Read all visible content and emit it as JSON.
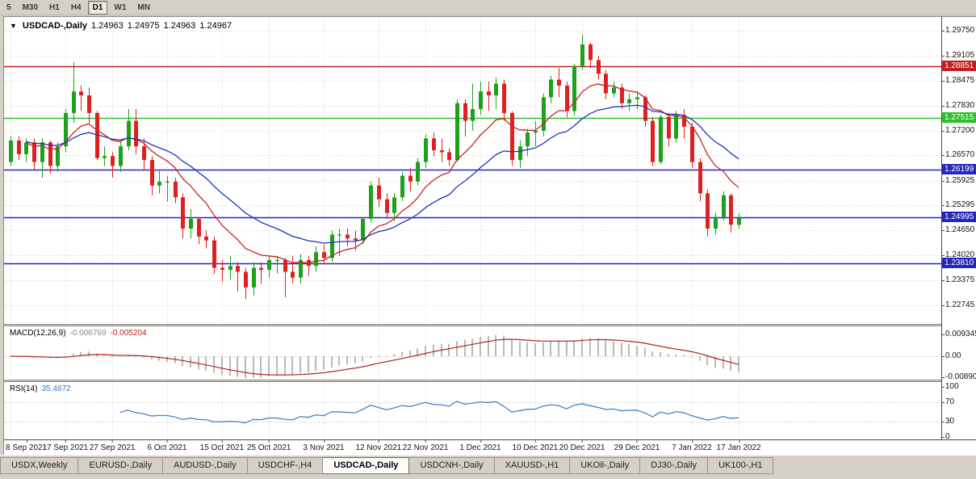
{
  "toolbar": {
    "timeframes": [
      {
        "label": "5",
        "active": false
      },
      {
        "label": "M30",
        "active": false
      },
      {
        "label": "H1",
        "active": false
      },
      {
        "label": "H4",
        "active": false
      },
      {
        "label": "D1",
        "active": true
      },
      {
        "label": "W1",
        "active": false
      },
      {
        "label": "MN",
        "active": false
      }
    ]
  },
  "chart": {
    "title": {
      "collapse_icon": "▼",
      "symbol": "USDCAD-,Daily",
      "open": "1.24963",
      "high": "1.24975",
      "low": "1.24963",
      "close": "1.24967"
    },
    "price_axis_labels": [
      "1.29750",
      "1.29105",
      "1.28475",
      "1.27830",
      "1.27200",
      "1.26570",
      "1.25925",
      "1.25295",
      "1.24650",
      "1.24020",
      "1.23375",
      "1.22745"
    ],
    "levels": [
      {
        "price": 1.28851,
        "label": "1.28851",
        "color": "#c22020"
      },
      {
        "price": 1.27515,
        "label": "1.27515",
        "color": "#2fbf2f"
      },
      {
        "price": 1.26199,
        "label": "1.26199",
        "color": "#2626bb"
      },
      {
        "price": 1.24995,
        "label": "1.24995",
        "color": "#2626bb"
      },
      {
        "price": 1.2381,
        "label": "1.23810",
        "color": "#2626bb"
      }
    ],
    "date_ticks": [
      {
        "label": "8 Sep 2021",
        "index": 0
      },
      {
        "label": "17 Sep 2021",
        "index": 7
      },
      {
        "label": "27 Sep 2021",
        "index": 13
      },
      {
        "label": "6 Oct 2021",
        "index": 20
      },
      {
        "label": "15 Oct 2021",
        "index": 27
      },
      {
        "label": "25 Oct 2021",
        "index": 33
      },
      {
        "label": "3 Nov 2021",
        "index": 40
      },
      {
        "label": "12 Nov 2021",
        "index": 47
      },
      {
        "label": "22 Nov 2021",
        "index": 53
      },
      {
        "label": "1 Dec 2021",
        "index": 60
      },
      {
        "label": "10 Dec 2021",
        "index": 67
      },
      {
        "label": "20 Dec 2021",
        "index": 73
      },
      {
        "label": "29 Dec 2021",
        "index": 80
      },
      {
        "label": "7 Jan 2022",
        "index": 87
      },
      {
        "label": "17 Jan 2022",
        "index": 93
      }
    ]
  },
  "macd_panel": {
    "name": "MACD(12,26,9)",
    "value_main": "-0.006769",
    "value_signal": "-0.005204",
    "axis_labels": [
      {
        "text": "0.009345",
        "value": 0.009345
      },
      {
        "text": "0.00",
        "value": 0
      },
      {
        "text": "-0.008902",
        "value": -0.008902
      }
    ],
    "colors": {
      "histogram": "#b9b9b9",
      "signal": "#b22222"
    }
  },
  "rsi_panel": {
    "name": "RSI(14)",
    "value": "35.4872",
    "axis_labels": [
      {
        "text": "100",
        "value": 100
      },
      {
        "text": "70",
        "value": 70
      },
      {
        "text": "30",
        "value": 30
      },
      {
        "text": "0",
        "value": 0
      }
    ],
    "levels": [
      70,
      30
    ],
    "color": "#3a7abf"
  },
  "tabs": [
    {
      "label": "USDX,Weekly",
      "active": false
    },
    {
      "label": "EURUSD-,Daily",
      "active": false
    },
    {
      "label": "AUDUSD-,Daily",
      "active": false
    },
    {
      "label": "USDCHF-,H4",
      "active": false
    },
    {
      "label": "USDCAD-,Daily",
      "active": true
    },
    {
      "label": "USDCNH-,Daily",
      "active": false
    },
    {
      "label": "XAUUSD-,H1",
      "active": false
    },
    {
      "label": "UKOil-,Daily",
      "active": false
    },
    {
      "label": "DJ30-,Daily",
      "active": false
    },
    {
      "label": "UK100-,H1",
      "active": false
    }
  ],
  "chart_data": {
    "type": "candlestick",
    "symbol": "USDCAD-",
    "timeframe": "Daily",
    "title": "USDCAD-,Daily",
    "ohlc_display": [
      1.24963,
      1.24975,
      1.24963,
      1.24967
    ],
    "visible_range": [
      1.2227,
      1.301
    ],
    "up_color": "#1ba11b",
    "down_color": "#e02020",
    "columns": [
      "date",
      "open",
      "high",
      "low",
      "close"
    ],
    "candles": [
      [
        "8 Sep",
        1.264,
        1.2705,
        1.263,
        1.2695
      ],
      [
        "9 Sep",
        1.2695,
        1.2705,
        1.2645,
        1.266
      ],
      [
        "10 Sep",
        1.266,
        1.27,
        1.264,
        1.269
      ],
      [
        "13 Sep",
        1.269,
        1.27,
        1.262,
        1.264
      ],
      [
        "14 Sep",
        1.264,
        1.27,
        1.26,
        1.269
      ],
      [
        "15 Sep",
        1.269,
        1.2695,
        1.261,
        1.263
      ],
      [
        "16 Sep",
        1.263,
        1.269,
        1.2615,
        1.268
      ],
      [
        "17 Sep",
        1.268,
        1.2775,
        1.2665,
        1.2765
      ],
      [
        "20 Sep",
        1.2765,
        1.2895,
        1.274,
        1.282
      ],
      [
        "21 Sep",
        1.282,
        1.2835,
        1.277,
        1.281
      ],
      [
        "22 Sep",
        1.281,
        1.283,
        1.274,
        1.2765
      ],
      [
        "23 Sep",
        1.2765,
        1.277,
        1.2645,
        1.265
      ],
      [
        "24 Sep",
        1.265,
        1.268,
        1.263,
        1.2655
      ],
      [
        "27 Sep",
        1.2655,
        1.2665,
        1.26,
        1.263
      ],
      [
        "28 Sep",
        1.263,
        1.2695,
        1.2615,
        1.268
      ],
      [
        "29 Sep",
        1.268,
        1.2775,
        1.267,
        1.2745
      ],
      [
        "30 Sep",
        1.2745,
        1.2775,
        1.266,
        1.268
      ],
      [
        "1 Oct",
        1.268,
        1.27,
        1.262,
        1.2645
      ],
      [
        "4 Oct",
        1.2645,
        1.2655,
        1.2555,
        1.258
      ],
      [
        "5 Oct",
        1.258,
        1.262,
        1.256,
        1.259
      ],
      [
        "6 Oct",
        1.259,
        1.2605,
        1.254,
        1.259
      ],
      [
        "7 Oct",
        1.259,
        1.26,
        1.2535,
        1.255
      ],
      [
        "8 Oct",
        1.255,
        1.256,
        1.2445,
        1.247
      ],
      [
        "11 Oct",
        1.247,
        1.252,
        1.2445,
        1.2495
      ],
      [
        "12 Oct",
        1.2495,
        1.25,
        1.243,
        1.245
      ],
      [
        "13 Oct",
        1.245,
        1.2465,
        1.242,
        1.244
      ],
      [
        "14 Oct",
        1.244,
        1.245,
        1.2355,
        1.237
      ],
      [
        "15 Oct",
        1.237,
        1.239,
        1.2335,
        1.2365
      ],
      [
        "18 Oct",
        1.2365,
        1.24,
        1.234,
        1.2375
      ],
      [
        "19 Oct",
        1.2375,
        1.2385,
        1.231,
        1.236
      ],
      [
        "20 Oct",
        1.236,
        1.237,
        1.229,
        1.232
      ],
      [
        "21 Oct",
        1.232,
        1.2385,
        1.23,
        1.237
      ],
      [
        "22 Oct",
        1.237,
        1.2385,
        1.233,
        1.2365
      ],
      [
        "25 Oct",
        1.2365,
        1.24,
        1.2345,
        1.239
      ],
      [
        "26 Oct",
        1.239,
        1.24,
        1.2355,
        1.239
      ],
      [
        "27 Oct",
        1.239,
        1.2395,
        1.2295,
        1.236
      ],
      [
        "28 Oct",
        1.236,
        1.24,
        1.233,
        1.2345
      ],
      [
        "29 Oct",
        1.2345,
        1.2405,
        1.233,
        1.239
      ],
      [
        "1 Nov",
        1.239,
        1.24,
        1.235,
        1.2375
      ],
      [
        "2 Nov",
        1.2375,
        1.2425,
        1.236,
        1.241
      ],
      [
        "3 Nov",
        1.241,
        1.243,
        1.238,
        1.2395
      ],
      [
        "4 Nov",
        1.2395,
        1.2465,
        1.2385,
        1.2455
      ],
      [
        "5 Nov",
        1.2455,
        1.247,
        1.24,
        1.2455
      ],
      [
        "8 Nov",
        1.2455,
        1.247,
        1.2425,
        1.2445
      ],
      [
        "9 Nov",
        1.2445,
        1.2465,
        1.2415,
        1.244
      ],
      [
        "10 Nov",
        1.244,
        1.25,
        1.243,
        1.2495
      ],
      [
        "11 Nov",
        1.2495,
        1.259,
        1.2485,
        1.258
      ],
      [
        "12 Nov",
        1.258,
        1.26,
        1.2525,
        1.2545
      ],
      [
        "15 Nov",
        1.2545,
        1.256,
        1.2495,
        1.251
      ],
      [
        "16 Nov",
        1.251,
        1.256,
        1.249,
        1.255
      ],
      [
        "17 Nov",
        1.255,
        1.2615,
        1.254,
        1.2605
      ],
      [
        "18 Nov",
        1.2605,
        1.2625,
        1.2565,
        1.259
      ],
      [
        "19 Nov",
        1.259,
        1.265,
        1.258,
        1.264
      ],
      [
        "22 Nov",
        1.264,
        1.271,
        1.2625,
        1.27
      ],
      [
        "23 Nov",
        1.27,
        1.2715,
        1.2655,
        1.267
      ],
      [
        "24 Nov",
        1.267,
        1.27,
        1.264,
        1.2665
      ],
      [
        "25 Nov",
        1.2665,
        1.2675,
        1.263,
        1.2645
      ],
      [
        "26 Nov",
        1.2645,
        1.28,
        1.264,
        1.279
      ],
      [
        "29 Nov",
        1.279,
        1.28,
        1.2705,
        1.2745
      ],
      [
        "30 Nov",
        1.2745,
        1.284,
        1.272,
        1.2775
      ],
      [
        "1 Dec",
        1.2775,
        1.2845,
        1.276,
        1.282
      ],
      [
        "2 Dec",
        1.282,
        1.2845,
        1.277,
        1.281
      ],
      [
        "3 Dec",
        1.281,
        1.2855,
        1.2775,
        1.284
      ],
      [
        "6 Dec",
        1.284,
        1.285,
        1.2745,
        1.2765
      ],
      [
        "7 Dec",
        1.2765,
        1.277,
        1.263,
        1.2645
      ],
      [
        "8 Dec",
        1.2645,
        1.2695,
        1.2625,
        1.268
      ],
      [
        "9 Dec",
        1.268,
        1.2725,
        1.2655,
        1.2715
      ],
      [
        "10 Dec",
        1.2715,
        1.2745,
        1.268,
        1.272
      ],
      [
        "13 Dec",
        1.272,
        1.2815,
        1.2705,
        1.2805
      ],
      [
        "14 Dec",
        1.2805,
        1.286,
        1.279,
        1.285
      ],
      [
        "15 Dec",
        1.285,
        1.288,
        1.2805,
        1.2835
      ],
      [
        "16 Dec",
        1.2835,
        1.2845,
        1.2755,
        1.277
      ],
      [
        "17 Dec",
        1.277,
        1.289,
        1.276,
        1.2885
      ],
      [
        "20 Dec",
        1.2885,
        1.2965,
        1.2875,
        1.294
      ],
      [
        "21 Dec",
        1.294,
        1.2945,
        1.288,
        1.29
      ],
      [
        "22 Dec",
        1.29,
        1.291,
        1.285,
        1.2865
      ],
      [
        "23 Dec",
        1.2865,
        1.2875,
        1.28,
        1.2815
      ],
      [
        "24 Dec",
        1.2815,
        1.2845,
        1.2805,
        1.283
      ],
      [
        "27 Dec",
        1.283,
        1.284,
        1.2775,
        1.279
      ],
      [
        "28 Dec",
        1.279,
        1.2815,
        1.277,
        1.28
      ],
      [
        "29 Dec",
        1.28,
        1.282,
        1.2775,
        1.2805
      ],
      [
        "30 Dec",
        1.2805,
        1.281,
        1.273,
        1.2745
      ],
      [
        "31 Dec",
        1.2745,
        1.2755,
        1.263,
        1.264
      ],
      [
        "3 Jan",
        1.264,
        1.276,
        1.2635,
        1.2755
      ],
      [
        "4 Jan",
        1.2755,
        1.2765,
        1.268,
        1.27
      ],
      [
        "5 Jan",
        1.27,
        1.277,
        1.269,
        1.276
      ],
      [
        "6 Jan",
        1.276,
        1.2775,
        1.27,
        1.273
      ],
      [
        "7 Jan",
        1.273,
        1.274,
        1.2625,
        1.264
      ],
      [
        "10 Jan",
        1.264,
        1.265,
        1.254,
        1.256
      ],
      [
        "11 Jan",
        1.256,
        1.257,
        1.245,
        1.247
      ],
      [
        "12 Jan",
        1.247,
        1.251,
        1.2455,
        1.25
      ],
      [
        "13 Jan",
        1.25,
        1.2565,
        1.249,
        1.2555
      ],
      [
        "14 Jan",
        1.2555,
        1.256,
        1.246,
        1.248
      ],
      [
        "17 Jan",
        1.248,
        1.251,
        1.247,
        1.2497
      ]
    ],
    "moving_averages": [
      {
        "type": "ema",
        "period": 10,
        "color": "#cc2222"
      },
      {
        "type": "ema",
        "period": 22,
        "color": "#2233bb"
      }
    ],
    "indicators": [
      {
        "name": "MACD",
        "params": [
          12,
          26,
          9
        ],
        "values_shown": [
          -0.006769,
          -0.005204
        ]
      },
      {
        "name": "RSI",
        "params": [
          14
        ],
        "value_shown": 35.4872
      }
    ],
    "horizontal_levels": [
      1.28851,
      1.27515,
      1.26199,
      1.24995,
      1.2381
    ]
  }
}
